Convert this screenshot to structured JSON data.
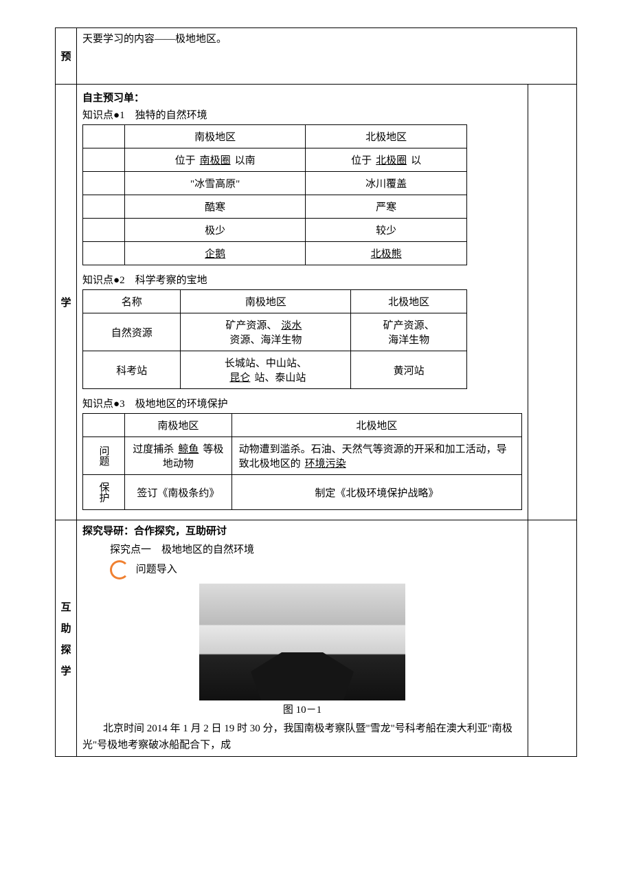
{
  "colors": {
    "text": "#000000",
    "bg": "#ffffff",
    "border": "#000000",
    "accent": "#f08030"
  },
  "side": {
    "pre1": "预",
    "pre2": "学",
    "ex1": "互",
    "ex2": "助",
    "ex3": "探",
    "ex4": "学"
  },
  "pre": {
    "intro": "天要学习的内容——极地地区。",
    "self_study": "自主预习单：",
    "kp1": "知识点●1　独特的自然环境",
    "kp2": "知识点●2　科学考察的宝地",
    "kp3": "知识点●3　极地地区的环境保护"
  },
  "table1": {
    "col_south": "南极地区",
    "col_north": "北极地区",
    "rows": [
      {
        "south_pre": "位于",
        "south_u": "南极圈",
        "south_post": "以南",
        "north_pre": "位于",
        "north_u": "北极圈",
        "north_post": "以"
      },
      {
        "south": "\"冰雪高原\"",
        "north": "冰川覆盖"
      },
      {
        "south": "酷寒",
        "north": "严寒"
      },
      {
        "south": "极少",
        "north": "较少"
      },
      {
        "south_u": "企鹅",
        "north_u": "北极熊"
      }
    ]
  },
  "table2": {
    "h_name": "名称",
    "h_south": "南极地区",
    "h_north": "北极地区",
    "r1_name": "自然资源",
    "r1_south_pre": "矿产资源、",
    "r1_south_u": "淡水",
    "r1_south_post": "资源、海洋生物",
    "r1_north_l1": "矿产资源、",
    "r1_north_l2": "海洋生物",
    "r2_name": "科考站",
    "r2_south_l1": "长城站、中山站、",
    "r2_south_u": "昆仑",
    "r2_south_post": "站、泰山站",
    "r2_north": "黄河站"
  },
  "table3": {
    "h_south": "南极地区",
    "h_north": "北极地区",
    "r1_name": "问题",
    "r1_south_pre": "过度捕杀",
    "r1_south_u": "鲸鱼",
    "r1_south_post": "等极地动物",
    "r1_north_pre": "动物遭到滥杀。石油、天然气等资源的开采和加工活动，导致北极地区的",
    "r1_north_u": "环境污染",
    "r2_name": "保护",
    "r2_south": "签订《南极条约》",
    "r2_north": "制定《北极环境保护战略》"
  },
  "explore": {
    "header": "探究导研：合作探究，互助研讨",
    "point1": "探究点一　极地地区的自然环境",
    "q_intro": "问题导入",
    "fig_caption": "图 10－1",
    "para": "北京时间 2014 年 1 月 2 日 19 时 30 分，我国南极考察队暨\"雪龙\"号科考船在澳大利亚\"南极光\"号极地考察破冰船配合下，成"
  }
}
